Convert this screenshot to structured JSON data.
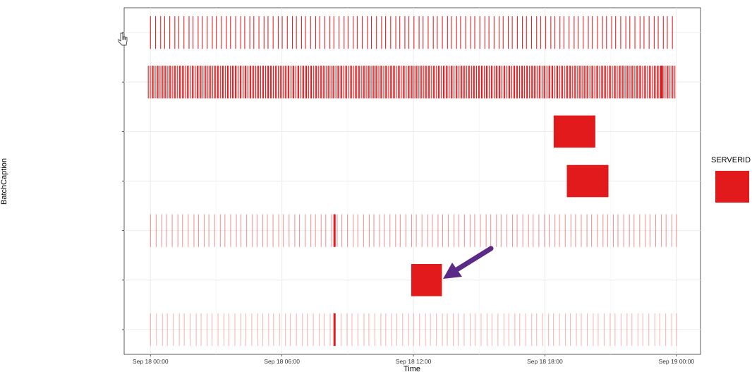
{
  "chart_data": {
    "type": "timeline",
    "xlabel": "Time",
    "ylabel": "BatchCaption",
    "x_ticks": [
      "Sep 18 00:00",
      "Sep 18 06:00",
      "Sep 18 12:00",
      "Sep 18 18:00",
      "Sep 19 00:00"
    ],
    "x_range_hours": [
      -1.2,
      25.1
    ],
    "grid": true,
    "legend": {
      "title": "SERVERID",
      "position": "right",
      "entries": [
        ""
      ]
    },
    "colors": {
      "series": "#e31a1c",
      "arrow": "#5b2a86",
      "grid": "#ebebeb",
      "frame": "#333333"
    },
    "rows": [
      {
        "label": "",
        "kind": "ticks",
        "start_h": 0.0,
        "end_h": 23.8,
        "count": 112,
        "opacity": 0.95,
        "heavy_at_h": []
      },
      {
        "label": "",
        "kind": "ticks",
        "start_h": -0.1,
        "end_h": 23.9,
        "count": 330,
        "opacity": 1.0,
        "heavy_at_h": [
          23.3
        ]
      },
      {
        "label": "",
        "kind": "block",
        "start_h": 18.4,
        "end_h": 20.3,
        "opacity": 1.0
      },
      {
        "label": "",
        "kind": "block",
        "start_h": 19.0,
        "end_h": 20.9,
        "opacity": 1.0
      },
      {
        "label": "",
        "kind": "ticks",
        "start_h": 0.0,
        "end_h": 24.0,
        "count": 100,
        "opacity": 0.45,
        "heavy_at_h": [
          8.4
        ]
      },
      {
        "label": "",
        "kind": "block",
        "start_h": 11.9,
        "end_h": 13.3,
        "opacity": 1.0
      },
      {
        "label": "",
        "kind": "ticks",
        "start_h": 0.0,
        "end_h": 24.0,
        "count": 95,
        "opacity": 0.3,
        "heavy_at_h": [
          8.4
        ]
      }
    ],
    "annotation": {
      "type": "arrow",
      "points_to_row": 6
    }
  }
}
